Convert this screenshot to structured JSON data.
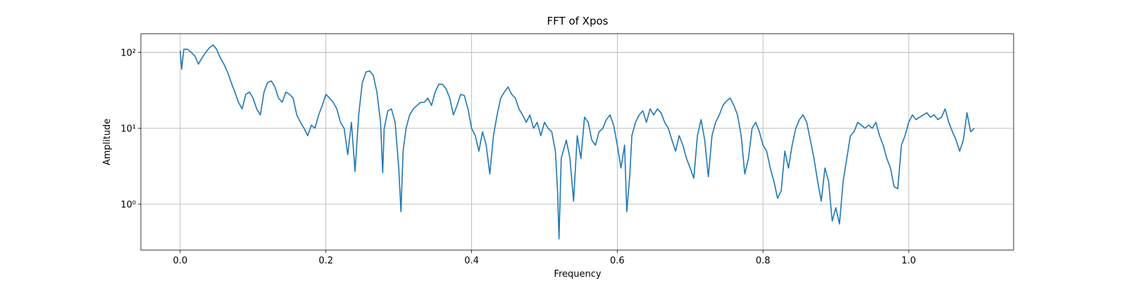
{
  "chart_data": {
    "type": "line",
    "title": "FFT of Xpos",
    "xlabel": "Frequency",
    "ylabel": "Amplitude",
    "log_y": true,
    "grid": true,
    "xlim": [
      -0.054,
      1.144
    ],
    "ylim": [
      0.249,
      176
    ],
    "xticks": [
      {
        "value": 0,
        "label": "0.0"
      },
      0.2,
      0.4,
      0.6,
      0.8,
      {
        "value": 1,
        "label": "1.0"
      }
    ],
    "yticks": [
      {
        "value": 1,
        "label": "10⁰"
      },
      {
        "value": 10,
        "label": "10¹"
      },
      {
        "value": 100,
        "label": "10²"
      }
    ],
    "x": [
      0,
      0.002,
      0.005,
      0.01,
      0.015,
      0.02,
      0.025,
      0.03,
      0.035,
      0.04,
      0.045,
      0.05,
      0.055,
      0.06,
      0.065,
      0.07,
      0.075,
      0.08,
      0.085,
      0.09,
      0.095,
      0.1,
      0.105,
      0.11,
      0.115,
      0.12,
      0.125,
      0.13,
      0.135,
      0.14,
      0.145,
      0.15,
      0.155,
      0.16,
      0.165,
      0.17,
      0.175,
      0.18,
      0.185,
      0.19,
      0.195,
      0.2,
      0.205,
      0.21,
      0.215,
      0.22,
      0.225,
      0.23,
      0.235,
      0.24,
      0.245,
      0.25,
      0.255,
      0.26,
      0.265,
      0.27,
      0.275,
      0.278,
      0.28,
      0.285,
      0.29,
      0.295,
      0.3,
      0.303,
      0.306,
      0.31,
      0.315,
      0.32,
      0.325,
      0.33,
      0.335,
      0.34,
      0.345,
      0.35,
      0.355,
      0.36,
      0.365,
      0.37,
      0.375,
      0.38,
      0.385,
      0.39,
      0.395,
      0.4,
      0.405,
      0.41,
      0.415,
      0.42,
      0.425,
      0.43,
      0.435,
      0.44,
      0.445,
      0.45,
      0.455,
      0.46,
      0.465,
      0.47,
      0.475,
      0.48,
      0.485,
      0.49,
      0.495,
      0.5,
      0.505,
      0.51,
      0.515,
      0.518,
      0.52,
      0.523,
      0.53,
      0.535,
      0.54,
      0.545,
      0.55,
      0.555,
      0.56,
      0.565,
      0.57,
      0.575,
      0.58,
      0.585,
      0.59,
      0.595,
      0.6,
      0.605,
      0.61,
      0.613,
      0.617,
      0.62,
      0.625,
      0.63,
      0.635,
      0.64,
      0.645,
      0.65,
      0.655,
      0.66,
      0.665,
      0.67,
      0.675,
      0.68,
      0.685,
      0.69,
      0.695,
      0.7,
      0.705,
      0.71,
      0.715,
      0.72,
      0.725,
      0.73,
      0.735,
      0.74,
      0.745,
      0.75,
      0.755,
      0.76,
      0.765,
      0.77,
      0.775,
      0.78,
      0.785,
      0.79,
      0.795,
      0.8,
      0.805,
      0.81,
      0.815,
      0.82,
      0.825,
      0.83,
      0.835,
      0.84,
      0.845,
      0.85,
      0.855,
      0.86,
      0.865,
      0.87,
      0.875,
      0.88,
      0.885,
      0.89,
      0.895,
      0.9,
      0.905,
      0.91,
      0.915,
      0.92,
      0.925,
      0.93,
      0.935,
      0.94,
      0.945,
      0.95,
      0.955,
      0.96,
      0.965,
      0.97,
      0.975,
      0.98,
      0.985,
      0.99,
      0.995,
      1,
      1.005,
      1.01,
      1.015,
      1.02,
      1.025,
      1.03,
      1.035,
      1.04,
      1.045,
      1.05,
      1.055,
      1.06,
      1.065,
      1.07,
      1.075,
      1.08,
      1.085,
      1.09
    ],
    "series": [
      {
        "color": "#1f77b4",
        "values": [
          105,
          60,
          110,
          110,
          100,
          90,
          70,
          85,
          100,
          115,
          125,
          110,
          85,
          70,
          55,
          40,
          30,
          22,
          18,
          28,
          30,
          25,
          18,
          15,
          30,
          40,
          42,
          35,
          25,
          22,
          30,
          28,
          25,
          15,
          12,
          10,
          8,
          11,
          10,
          15,
          20,
          28,
          25,
          22,
          18,
          12,
          10,
          4.5,
          12,
          2.7,
          15,
          40,
          55,
          57,
          50,
          30,
          12,
          2.6,
          10,
          17,
          18,
          12,
          3,
          0.8,
          5,
          10,
          15,
          18,
          20,
          22,
          22,
          25,
          20,
          30,
          38,
          38,
          33,
          25,
          15,
          20,
          28,
          27,
          18,
          10,
          8,
          5,
          9,
          6,
          2.5,
          8,
          15,
          25,
          30,
          35,
          28,
          25,
          18,
          15,
          12,
          15,
          10,
          12,
          8,
          12,
          10,
          9,
          5,
          1.5,
          0.35,
          4,
          7,
          4,
          1.1,
          8,
          4,
          14,
          12,
          7,
          6,
          9,
          10,
          13,
          15,
          11,
          6,
          3,
          6,
          0.8,
          2.3,
          8,
          12,
          15,
          17,
          12,
          18,
          15,
          18,
          16,
          12,
          10,
          7,
          5,
          8,
          6,
          4,
          3,
          2.2,
          8,
          13,
          7,
          2.3,
          8,
          12,
          15,
          20,
          23,
          25,
          20,
          15,
          8,
          2.5,
          4,
          10,
          12,
          9,
          6,
          5,
          3,
          2,
          1.2,
          1.5,
          5,
          3,
          6,
          10,
          13,
          15,
          12,
          7,
          4,
          2,
          1.1,
          3,
          2,
          0.6,
          0.9,
          0.55,
          2,
          4,
          8,
          9,
          12,
          11,
          10,
          11,
          10,
          12,
          8,
          6,
          4,
          3,
          1.7,
          1.6,
          6,
          8,
          12,
          15,
          13,
          14,
          15,
          16,
          14,
          15,
          13,
          14,
          18,
          12,
          9,
          7,
          5,
          7,
          16,
          9,
          10
        ]
      }
    ]
  }
}
